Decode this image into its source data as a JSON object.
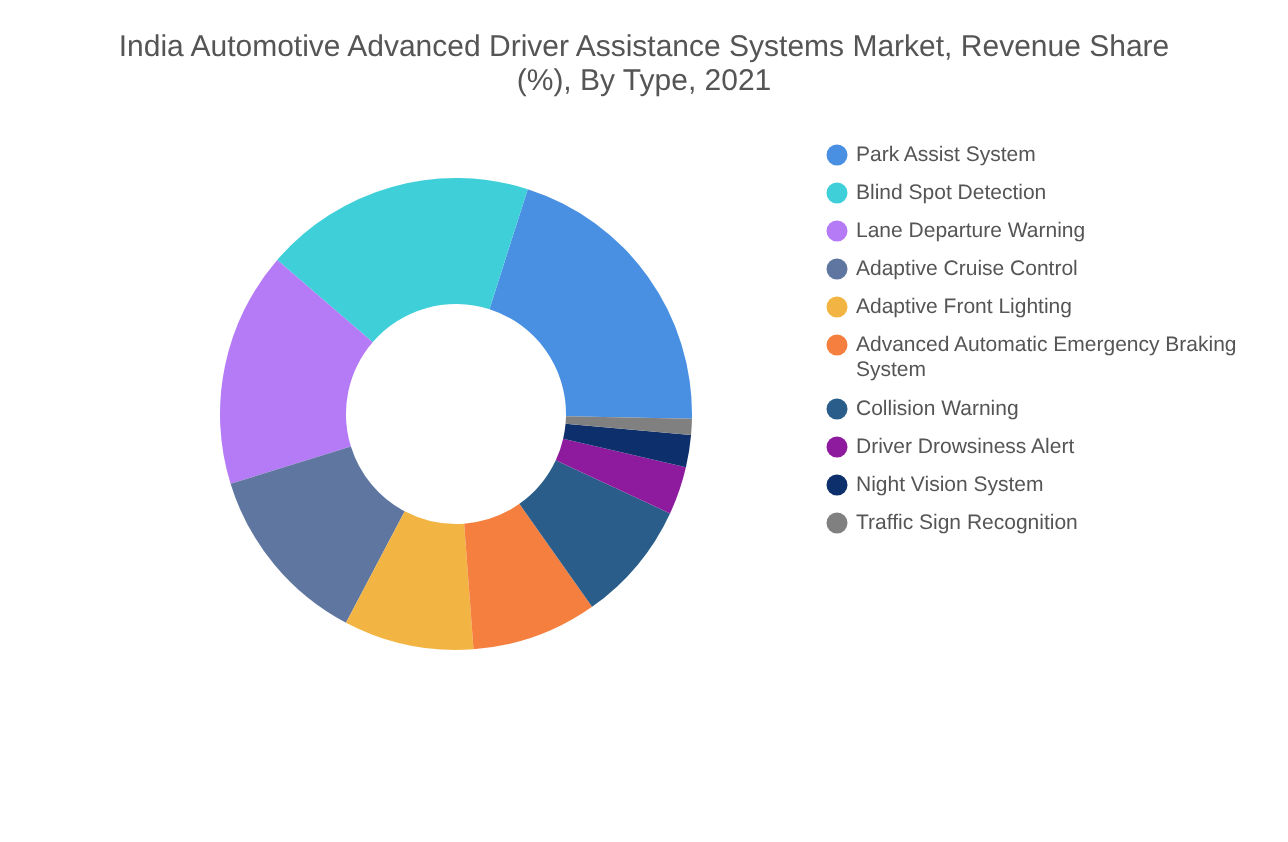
{
  "chart_data": {
    "type": "donut",
    "title": "India Automotive Advanced Driver Assistance Systems Market, Revenue Share (%), By Type, 2021",
    "categories": [
      "Park Assist System",
      "Blind Spot Detection",
      "Lane Departure Warning",
      "Adaptive Cruise Control",
      "Adaptive Front Lighting",
      "Advanced Automatic Emergency Braking System",
      "Collision Warning",
      "Driver Drowsiness Alert",
      "Night Vision System",
      "Traffic Sign Recognition"
    ],
    "values": [
      20.4,
      18.6,
      16.1,
      12.5,
      8.9,
      8.6,
      8.3,
      3.3,
      2.2,
      1.1
    ],
    "colors": [
      "#4a90e2",
      "#3ecfd9",
      "#b57af5",
      "#5f77a0",
      "#f2b543",
      "#f57f3f",
      "#2a5d8a",
      "#8e1b9e",
      "#0d2f6b",
      "#808080"
    ],
    "legend": "right"
  }
}
